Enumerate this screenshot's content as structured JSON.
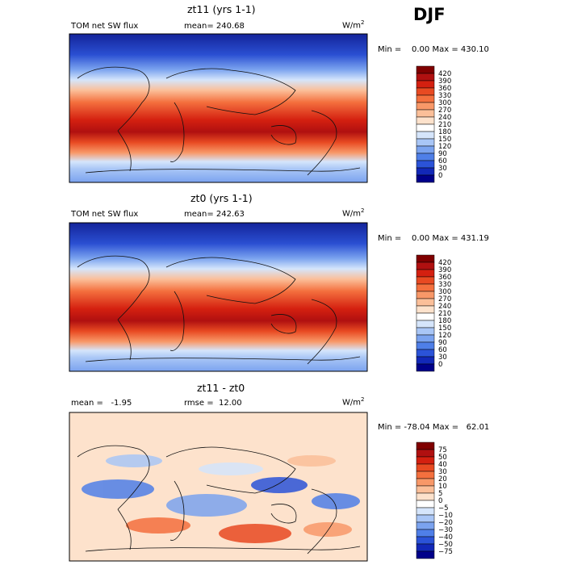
{
  "season": "DJF",
  "panels": [
    {
      "title": "zt11 (yrs 1-1)",
      "left_label": "TOM net SW flux",
      "center_label": "mean= 240.68",
      "units": "W/m",
      "units_sup": "2",
      "minmax": "Min =    0.00 Max = 430.10",
      "colorbar": [
        "420",
        "390",
        "360",
        "330",
        "300",
        "270",
        "240",
        "210",
        "180",
        "150",
        "120",
        "90",
        "60",
        "30",
        "0"
      ]
    },
    {
      "title": "zt0 (yrs 1-1)",
      "left_label": "TOM net SW flux",
      "center_label": "mean= 242.63",
      "units": "W/m",
      "units_sup": "2",
      "minmax": "Min =    0.00 Max = 431.19",
      "colorbar": [
        "420",
        "390",
        "360",
        "330",
        "300",
        "270",
        "240",
        "210",
        "180",
        "150",
        "120",
        "90",
        "60",
        "30",
        "0"
      ]
    },
    {
      "title": "zt11 - zt0",
      "left_label": "mean =   -1.95",
      "center_label": "rmse =  12.00",
      "units": "W/m",
      "units_sup": "2",
      "minmax": "Min = -78.04 Max =   62.01",
      "colorbar": [
        "75",
        "50",
        "40",
        "30",
        "20",
        "10",
        "5",
        "0",
        "−5",
        "−10",
        "−20",
        "−30",
        "−40",
        "−50",
        "−75"
      ]
    }
  ],
  "colors": {
    "abs_scale": [
      "#800000",
      "#b01010",
      "#d42010",
      "#e84a22",
      "#f4703e",
      "#f89868",
      "#fbbf99",
      "#fde2cc",
      "#ffffff",
      "#d5e5fb",
      "#a9c6f6",
      "#7ba3ef",
      "#4f7fe8",
      "#2b53d8",
      "#1228b8",
      "#00008a"
    ],
    "diff_scale": [
      "#800000",
      "#b01010",
      "#d42010",
      "#e84a22",
      "#f4703e",
      "#f89868",
      "#fbbf99",
      "#fde2cc",
      "#ffffff",
      "#d5e5fb",
      "#a9c6f6",
      "#7ba3ef",
      "#4f7fe8",
      "#2b53d8",
      "#1228b8",
      "#00008a"
    ]
  }
}
